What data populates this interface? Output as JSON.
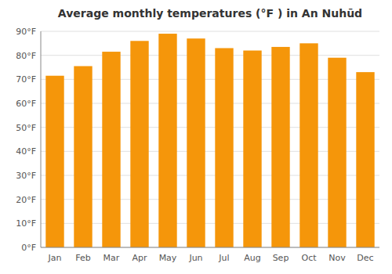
{
  "chart_data": {
    "type": "bar",
    "title": "Average monthly temperatures (°F ) in An Nuhūd",
    "categories": [
      "Jan",
      "Feb",
      "Mar",
      "Apr",
      "May",
      "Jun",
      "Jul",
      "Aug",
      "Sep",
      "Oct",
      "Nov",
      "Dec"
    ],
    "values": [
      71.5,
      75.5,
      81.5,
      86.0,
      89.0,
      87.0,
      83.0,
      82.0,
      83.5,
      85.0,
      79.0,
      73.0
    ],
    "color": "#F5960A",
    "ylim": [
      0,
      90
    ],
    "yticks": [
      {
        "value": 0,
        "label": "0°F"
      },
      {
        "value": 10,
        "label": "10°F"
      },
      {
        "value": 20,
        "label": "20°F"
      },
      {
        "value": 30,
        "label": "30°F"
      },
      {
        "value": 40,
        "label": "40°F"
      },
      {
        "value": 50,
        "label": "50°F"
      },
      {
        "value": 60,
        "label": "60°F"
      },
      {
        "value": 70,
        "label": "70°F"
      },
      {
        "value": 80,
        "label": "80°F"
      },
      {
        "value": 90,
        "label": "90°F"
      }
    ],
    "grid": true
  }
}
